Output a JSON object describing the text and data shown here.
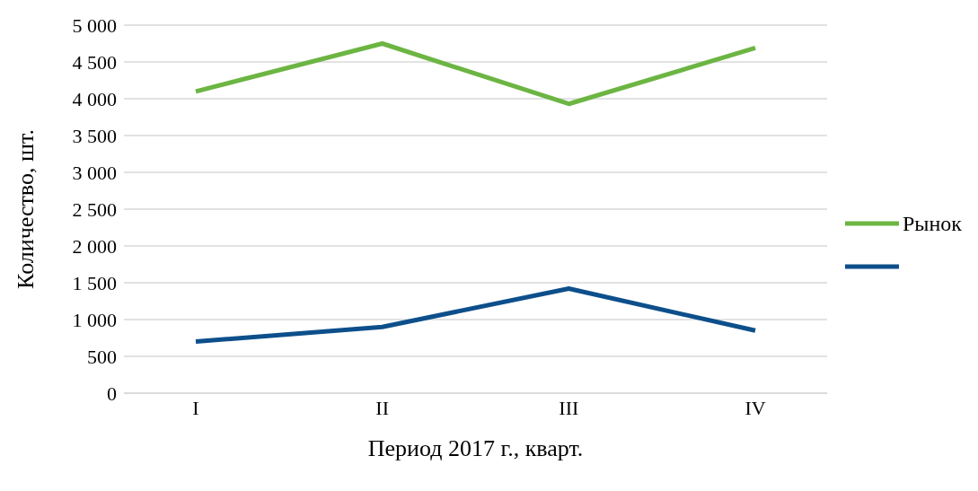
{
  "chart_data": {
    "type": "line",
    "xlabel": "Период 2017 г., кварт.",
    "ylabel": "Количество, шт.",
    "categories": [
      "I",
      "II",
      "III",
      "IV"
    ],
    "series": [
      {
        "name": "Рынок",
        "color": "#6cb543",
        "values": [
          4100,
          4750,
          3930,
          4690
        ]
      },
      {
        "color": "#0d4f8b",
        "values": [
          700,
          900,
          1420,
          850
        ]
      }
    ],
    "ylim": [
      0,
      5000
    ],
    "yticks": [
      0,
      500,
      {
        "value": 1000,
        "label": "1 000"
      },
      {
        "value": 1500,
        "label": "1 500"
      },
      {
        "value": 2000,
        "label": "2 000"
      },
      {
        "value": 2500,
        "label": "2 500"
      },
      {
        "value": 3000,
        "label": "3 000"
      },
      {
        "value": 3500,
        "label": "3 500"
      },
      {
        "value": 4000,
        "label": "4 000"
      },
      {
        "value": 4500,
        "label": "4 500"
      },
      {
        "value": 5000,
        "label": "5 000"
      }
    ],
    "grid": "y",
    "legend": "right",
    "marker": "none",
    "line_style": "solid"
  }
}
